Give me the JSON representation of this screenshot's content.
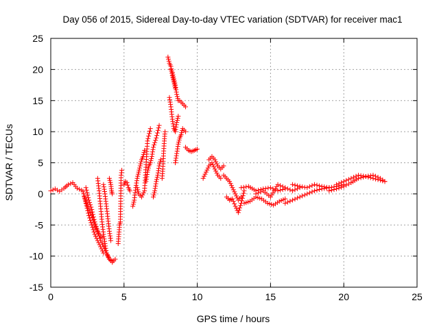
{
  "chart_data": {
    "type": "scatter",
    "title": "Day 056 of 2015, Sidereal Day-to-day VTEC variation (SDTVAR) for receiver mac1",
    "xlabel": "GPS time / hours",
    "ylabel": "SDTVAR / TECUs",
    "xlim": [
      0,
      25
    ],
    "ylim": [
      -15,
      25
    ],
    "xticks": [
      0,
      5,
      10,
      15,
      20,
      25
    ],
    "yticks": [
      -15,
      -10,
      -5,
      0,
      5,
      10,
      15,
      20,
      25
    ],
    "grid": true,
    "marker": "+",
    "color": "#ff0000",
    "series": [
      {
        "name": "SDTVAR",
        "tracks": [
          {
            "x": [
              0.0,
              0.3,
              0.6,
              0.9,
              1.2,
              1.5,
              1.8,
              2.1
            ],
            "y": [
              0.5,
              0.8,
              0.4,
              0.9,
              1.5,
              1.8,
              0.9,
              0.6
            ]
          },
          {
            "x": [
              2.2,
              2.4,
              2.6,
              2.8,
              3.0,
              3.2,
              3.4,
              3.6
            ],
            "y": [
              0.4,
              -1.5,
              -3.5,
              -5.0,
              -6.5,
              -7.5,
              -8.5,
              -9.5
            ]
          },
          {
            "x": [
              2.3,
              2.5,
              2.7,
              2.9,
              3.1,
              3.3,
              3.5
            ],
            "y": [
              -0.5,
              -2.0,
              -3.0,
              -4.2,
              -5.5,
              -6.5,
              -7.0
            ]
          },
          {
            "x": [
              2.4,
              2.6,
              2.8,
              3.0,
              3.2,
              3.4,
              3.6,
              3.8,
              4.0,
              4.2,
              4.4
            ],
            "y": [
              1.0,
              -1.0,
              -2.5,
              -4.5,
              -6.0,
              -7.5,
              -8.5,
              -9.5,
              -10.5,
              -11.0,
              -10.5
            ]
          },
          {
            "x": [
              3.2,
              3.3,
              3.4,
              3.5,
              3.6,
              3.7,
              3.8,
              3.9,
              4.0,
              4.2
            ],
            "y": [
              2.5,
              0.5,
              -2.0,
              -4.5,
              -6.5,
              -8.0,
              -9.5,
              -10.0,
              -10.5,
              -10.8
            ]
          },
          {
            "x": [
              3.6,
              3.7,
              3.8,
              3.9,
              4.0,
              4.1
            ],
            "y": [
              1.5,
              0.0,
              -2.0,
              -4.0,
              -6.0,
              -7.5
            ]
          },
          {
            "x": [
              4.0,
              4.1,
              4.15,
              4.2
            ],
            "y": [
              2.5,
              1.5,
              0.5,
              0.0
            ]
          },
          {
            "x": [
              4.6,
              4.65,
              4.7,
              4.75,
              4.8,
              4.85
            ],
            "y": [
              -8.0,
              -6.5,
              -5.0,
              -4.5,
              3.0,
              3.8
            ]
          },
          {
            "x": [
              5.0,
              5.1,
              5.2,
              5.3,
              5.4
            ],
            "y": [
              1.5,
              2.0,
              1.8,
              1.0,
              0.5
            ]
          },
          {
            "x": [
              5.6,
              5.7,
              5.8,
              5.9,
              6.0,
              6.1,
              6.2,
              6.3,
              6.4
            ],
            "y": [
              -2.0,
              -1.0,
              1.0,
              2.5,
              3.5,
              4.5,
              5.5,
              6.0,
              7.0
            ]
          },
          {
            "x": [
              5.9,
              6.0,
              6.2,
              6.4,
              6.6,
              6.8
            ],
            "y": [
              1.0,
              0.0,
              -0.5,
              0.5,
              8.5,
              10.5
            ]
          },
          {
            "x": [
              6.5,
              6.6,
              6.7,
              6.8,
              6.9,
              7.0,
              7.2,
              7.4
            ],
            "y": [
              2.0,
              3.5,
              4.5,
              5.0,
              6.0,
              7.5,
              9.0,
              11.0
            ]
          },
          {
            "x": [
              7.0,
              7.1,
              7.2,
              7.3,
              7.4,
              7.5
            ],
            "y": [
              -0.5,
              0.5,
              2.0,
              3.0,
              4.5,
              5.5
            ]
          },
          {
            "x": [
              7.6,
              7.65,
              7.7,
              7.75,
              7.8
            ],
            "y": [
              2.5,
              4.0,
              6.5,
              8.5,
              10.0
            ]
          },
          {
            "x": [
              8.0,
              8.1,
              8.2,
              8.3,
              8.4,
              8.5
            ],
            "y": [
              22.0,
              21.0,
              20.5,
              19.0,
              18.0,
              17.0
            ]
          },
          {
            "x": [
              8.2,
              8.3,
              8.4,
              8.5,
              8.6,
              8.7,
              8.8,
              9.0,
              9.2
            ],
            "y": [
              20.0,
              19.5,
              18.5,
              17.5,
              16.0,
              15.0,
              15.0,
              14.5,
              14.0
            ]
          },
          {
            "x": [
              8.1,
              8.2,
              8.3,
              8.4,
              8.5,
              8.6,
              8.7
            ],
            "y": [
              15.5,
              14.0,
              12.0,
              10.5,
              10.0,
              11.5,
              12.5
            ]
          },
          {
            "x": [
              8.5,
              8.6,
              8.7,
              8.8,
              8.9,
              9.0,
              9.2
            ],
            "y": [
              5.0,
              6.5,
              8.0,
              9.0,
              9.5,
              10.5,
              10.0
            ]
          },
          {
            "x": [
              9.2,
              9.4,
              9.6,
              9.8,
              10.0
            ],
            "y": [
              7.5,
              7.0,
              6.8,
              7.0,
              7.2
            ]
          },
          {
            "x": [
              10.4,
              10.6,
              10.8,
              11.0,
              11.2,
              11.4,
              11.6
            ],
            "y": [
              2.5,
              3.5,
              4.5,
              5.0,
              4.0,
              3.0,
              2.5
            ]
          },
          {
            "x": [
              10.8,
              11.0,
              11.2,
              11.4,
              11.6,
              11.8
            ],
            "y": [
              5.5,
              6.0,
              5.5,
              4.5,
              4.0,
              4.5
            ]
          },
          {
            "x": [
              11.8,
              12.0,
              12.2,
              12.4,
              12.6,
              12.8,
              13.0
            ],
            "y": [
              3.0,
              2.5,
              2.0,
              1.0,
              0.0,
              -1.0,
              -0.5
            ]
          },
          {
            "x": [
              12.0,
              12.2,
              12.4,
              12.6,
              12.8,
              13.0,
              13.2
            ],
            "y": [
              -0.5,
              -1.0,
              -0.8,
              -2.0,
              -3.0,
              -1.5,
              0.5
            ]
          },
          {
            "x": [
              13.0,
              13.5,
              14.0,
              14.5,
              15.0,
              15.5,
              16.0
            ],
            "y": [
              1.0,
              1.2,
              0.5,
              0.8,
              1.0,
              0.5,
              0.8
            ]
          },
          {
            "x": [
              13.2,
              13.6,
              14.0,
              14.4,
              14.8,
              15.2,
              15.6,
              16.0
            ],
            "y": [
              -1.5,
              -1.2,
              -0.5,
              -0.8,
              -1.5,
              -1.8,
              -1.2,
              -0.8
            ]
          },
          {
            "x": [
              14.0,
              14.5,
              15.0,
              15.5,
              16.0,
              16.5,
              17.0
            ],
            "y": [
              0.0,
              0.5,
              -0.5,
              1.5,
              1.0,
              0.5,
              1.0
            ]
          },
          {
            "x": [
              16.0,
              16.5,
              17.0,
              17.5,
              18.0,
              18.5,
              19.0,
              19.5,
              20.0
            ],
            "y": [
              -1.5,
              -1.0,
              -0.5,
              0.0,
              0.5,
              0.8,
              1.0,
              1.2,
              1.5
            ]
          },
          {
            "x": [
              16.5,
              17.0,
              17.5,
              18.0,
              18.5,
              19.0
            ],
            "y": [
              1.5,
              1.2,
              1.0,
              1.5,
              1.2,
              1.0
            ]
          },
          {
            "x": [
              19.0,
              19.5,
              20.0,
              20.5,
              21.0,
              21.5,
              22.0,
              22.5,
              22.8
            ],
            "y": [
              0.5,
              0.8,
              1.2,
              1.8,
              2.5,
              2.8,
              3.0,
              2.5,
              2.0
            ]
          },
          {
            "x": [
              19.5,
              20.0,
              20.5,
              21.0,
              21.5,
              22.0,
              22.5,
              22.8
            ],
            "y": [
              1.5,
              2.0,
              2.5,
              3.0,
              2.8,
              2.5,
              2.2,
              2.0
            ]
          }
        ]
      }
    ]
  }
}
